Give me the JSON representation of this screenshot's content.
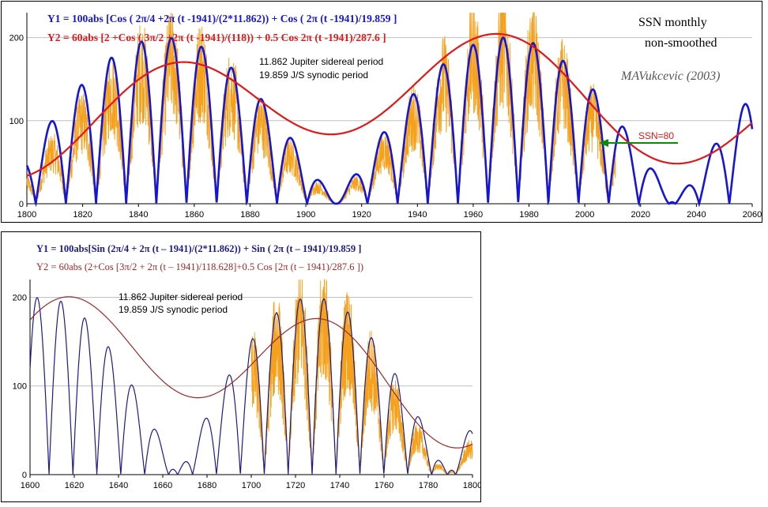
{
  "colors": {
    "blue": "#1515d8",
    "red": "#e01818",
    "orange": "#f5a11c",
    "navy": "#1b1b8a",
    "darkred": "#a02828",
    "green": "#0a8a0a",
    "grid": "#c0c0c0"
  },
  "chart_data": [
    {
      "type": "line",
      "title_lines": [
        "Y1 = 100abs [Cos ( 2π/4 +2π (t -1941)/(2*11.862)) + Cos ( 2π (t -1941)/19.859 ]",
        "Y2 = 60abs [2 +Cos ( 3π/2 +2π (t -1941)/(118)) + 0.5 Cos 2π (t -1941)/287.6 ]"
      ],
      "annotations": {
        "period_1": "11.862 Jupiter sidereal period",
        "period_2": "19.859 J/S synodic period",
        "label_right_1": "SSN  monthly",
        "label_right_2": "non-smoothed",
        "author": "MAVukcevic  (2003)",
        "ssn_marker": "SSN=80"
      },
      "xlim": [
        1800,
        2060
      ],
      "ylim": [
        0,
        230
      ],
      "xticks": [
        "1800",
        "1820",
        "1840",
        "1860",
        "1880",
        "1900",
        "1920",
        "1940",
        "1960",
        "1980",
        "2000",
        "2020",
        "2040",
        "2060"
      ],
      "yticks": [
        "0",
        "100",
        "200"
      ],
      "series": [
        {
          "role": "Y1",
          "model": {
            "amp": 100,
            "ref": 1941,
            "p1": 23.724,
            "p2": 19.859,
            "phase": 0.5
          },
          "x_range": [
            1800,
            2060
          ]
        },
        {
          "role": "Y2",
          "model": {
            "amp": 60,
            "ref": 1941,
            "pa": 118,
            "pb": 287.6,
            "c": 2
          },
          "x_range": [
            1800,
            2060
          ]
        },
        {
          "role": "SSN",
          "x_range": [
            1800,
            2011
          ]
        }
      ]
    },
    {
      "type": "line",
      "title_lines": [
        "Y1 = 100abs[Sin (2π/4 + 2π (t – 1941)/(2*11.862)) + Sin ( 2π (t – 1941)/19.859 ]",
        "Y2 = 60abs (2+Cos [3π/2 + 2π (t – 1941)/118.628]+0.5 Cos [2π (t – 1941)/287.6 ])"
      ],
      "annotations": {
        "period_1": "11.862 Jupiter sidereal period",
        "period_2": "19.859 J/S synodic period"
      },
      "xlim": [
        1600,
        1800
      ],
      "ylim": [
        0,
        220
      ],
      "xticks": [
        "1600",
        "1620",
        "1640",
        "1660",
        "1680",
        "1700",
        "1720",
        "1740",
        "1760",
        "1780",
        "1800"
      ],
      "yticks": [
        "0",
        "100",
        "200"
      ],
      "series": [
        {
          "role": "Y1",
          "model": {
            "amp": 100,
            "ref": 1941,
            "p1": 23.724,
            "p2": 19.859,
            "phase": 0.5
          },
          "x_range": [
            1600,
            1800
          ]
        },
        {
          "role": "Y2",
          "model": {
            "amp": 60,
            "ref": 1941,
            "pa": 118.628,
            "pb": 287.6,
            "c": 2
          },
          "x_range": [
            1600,
            1800
          ]
        },
        {
          "role": "SSN",
          "x_range": [
            1700,
            1800
          ]
        }
      ]
    }
  ]
}
